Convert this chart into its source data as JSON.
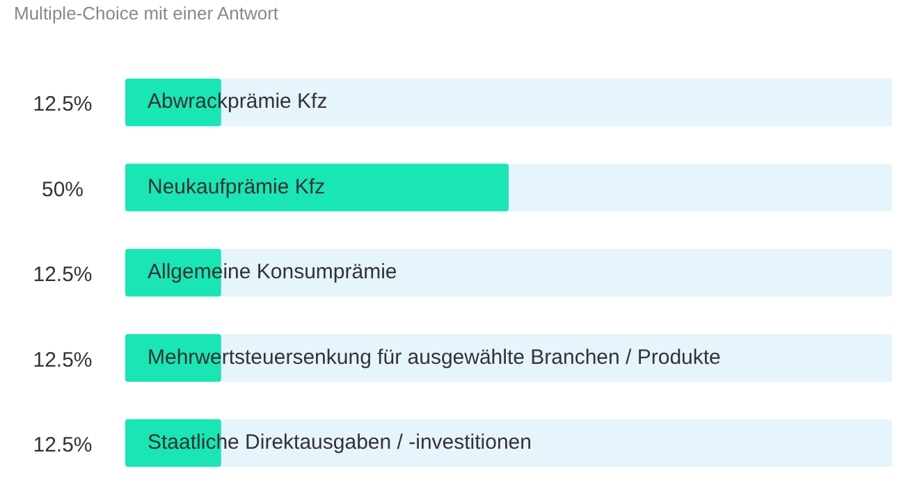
{
  "chart_data": {
    "type": "bar",
    "orientation": "horizontal",
    "title": "Multiple-Choice mit einer Antwort",
    "categories": [
      "Abwrackprämie Kfz",
      "Neukaufprämie Kfz",
      "Allgemeine Konsumprämie",
      "Mehrwertsteuersenkung für ausgewählte Branchen / Produkte",
      "Staatliche Direktausgaben / -investitionen"
    ],
    "values": [
      12.5,
      50,
      12.5,
      12.5,
      12.5
    ],
    "value_labels": [
      "12.5%",
      "50%",
      "12.5%",
      "12.5%",
      "12.5%"
    ],
    "color": "#1ae5b5",
    "xlim": [
      0,
      100
    ],
    "tick_labels": false,
    "legend": false
  }
}
